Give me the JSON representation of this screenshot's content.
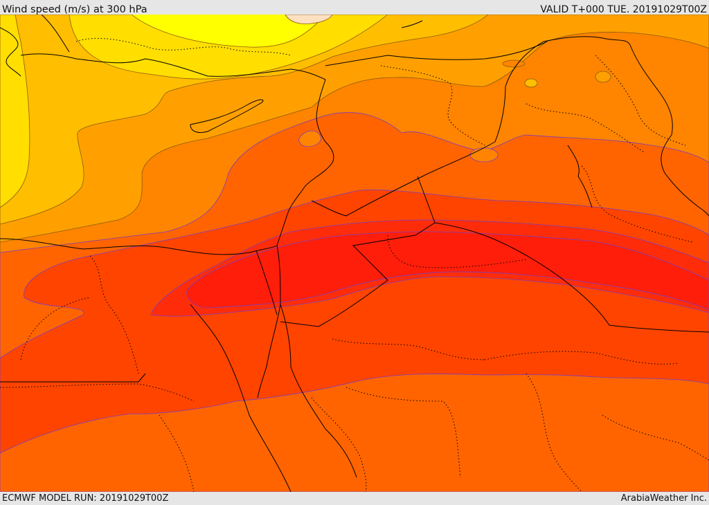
{
  "header": {
    "title": "Wind speed (m/s) at 300 hPa",
    "valid_time": "VALID T+000 TUE. 20191029T00Z"
  },
  "footer": {
    "model_run": "ECMWF MODEL RUN: 20191029T00Z",
    "credit": "ArabiaWeather Inc."
  },
  "map": {
    "field": "wind speed at 300 hPa",
    "units": "m/s",
    "palette": [
      "#ffff00",
      "#ffde00",
      "#ffbe00",
      "#ffa000",
      "#ff8400",
      "#ff6400",
      "#ff4400",
      "#ff2c0a",
      "#ff1e0a",
      "#fde0c0"
    ],
    "contour_colors": {
      "light_bands": "#8a5a10",
      "strong_bands": "#7a3cc0"
    },
    "boundary_color": "#000000"
  }
}
